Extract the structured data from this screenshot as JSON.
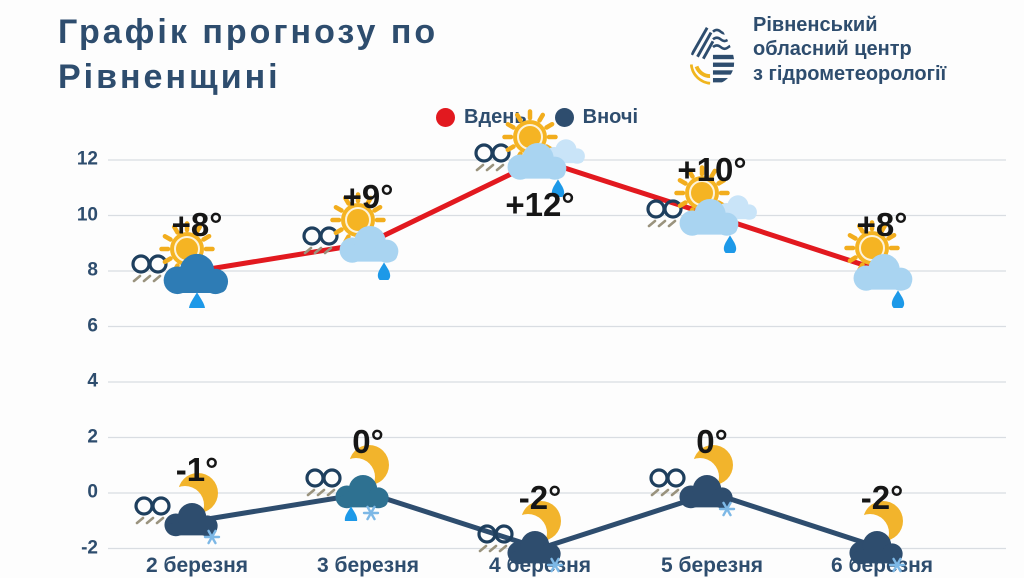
{
  "title": {
    "line1": "Графік прогнозу по",
    "line2": "Рівненщині"
  },
  "logo": {
    "line1": "Рівненський",
    "line2": "обласний центр",
    "line3": "з гідрометеорології"
  },
  "legend": {
    "day_label": "Вдень",
    "night_label": "Вночі"
  },
  "chart_data": {
    "type": "line",
    "title": "Графік прогнозу по Рівненщині",
    "categories": [
      "2 березня",
      "3 березня",
      "4 березня",
      "5 березня",
      "6 березня"
    ],
    "yticks": [
      12,
      10,
      8,
      6,
      4,
      2,
      0,
      -2
    ],
    "ylim": [
      -2.8,
      13
    ],
    "grid": "horizontal",
    "legend_position": "top-center",
    "series": [
      {
        "name": "Вдень",
        "color": "#e2191f",
        "values": [
          8,
          9,
          12,
          10,
          8
        ],
        "labels": [
          "+8°",
          "+9°",
          "+12°",
          "+10°",
          "+8°"
        ],
        "label_pos": [
          "above",
          "above",
          "below",
          "above",
          "above"
        ],
        "fog": [
          true,
          true,
          true,
          true,
          false
        ],
        "icons": [
          "sun-cloud-heavy-rain",
          "sun-cloud-rain",
          "sun-clouds-rain",
          "sun-clouds-rain",
          "sun-cloud-rain"
        ]
      },
      {
        "name": "Вночі",
        "color": "#2e4d6e",
        "values": [
          -1,
          0,
          -2,
          0,
          -2
        ],
        "labels": [
          "-1°",
          "0°",
          "-2°",
          "0°",
          "-2°"
        ],
        "label_pos": [
          "above",
          "above",
          "above",
          "above",
          "above"
        ],
        "fog": [
          true,
          true,
          true,
          true,
          false
        ],
        "icons": [
          "moon-cloud-snow",
          "moon-cloud-rain-snow",
          "moon-cloud-snow",
          "moon-cloud-snow",
          "moon-cloud-snow"
        ]
      }
    ],
    "icon_colors": {
      "sun": "#f5b423",
      "sun_ray": "#f2ad1d",
      "sun_ring": "#fdf3da",
      "moon": "#f2b42c",
      "cloud_light": "#a9d4f1",
      "cloud_back": "#c9e4f8",
      "cloud_day_dark": "#2e7cb5",
      "cloud_night": "#2e4d6e",
      "cloud_night_teal": "#2e7191",
      "rain": "#1d99e8",
      "snow": "#7db8e6",
      "fog_symbol": "#1e3f5e",
      "fog_hatch": "#9a937e",
      "grid": "#d9dde2",
      "navy": "#2e4d6e"
    }
  }
}
